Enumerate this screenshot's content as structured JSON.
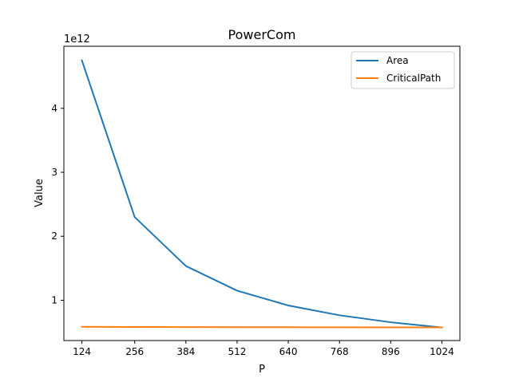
{
  "chart_data": {
    "type": "line",
    "title": "PowerCom",
    "xlabel": "P",
    "ylabel": "Value",
    "y_offset_label": "1e12",
    "x": [
      124,
      256,
      384,
      512,
      640,
      768,
      896,
      1024
    ],
    "x_ticks": [
      124,
      256,
      384,
      512,
      640,
      768,
      896,
      1024
    ],
    "x_tick_labels": [
      "124",
      "256",
      "384",
      "512",
      "640",
      "768",
      "896",
      "1024"
    ],
    "y_ticks": [
      1,
      2,
      3,
      4
    ],
    "y_tick_labels": [
      "1",
      "2",
      "3",
      "4"
    ],
    "y_scale": 1000000000000,
    "xlim": [
      79,
      1069
    ],
    "ylim": [
      0.37,
      4.97
    ],
    "grid": false,
    "legend_position": "top-right",
    "series": [
      {
        "name": "Area",
        "color": "#1f77b4",
        "values": [
          4.75,
          2.3,
          1.535,
          1.15,
          0.918,
          0.765,
          0.656,
          0.574
        ]
      },
      {
        "name": "CriticalPath",
        "color": "#ff7f0e",
        "values": [
          0.585,
          0.582,
          0.58,
          0.579,
          0.578,
          0.577,
          0.576,
          0.575
        ]
      }
    ]
  }
}
